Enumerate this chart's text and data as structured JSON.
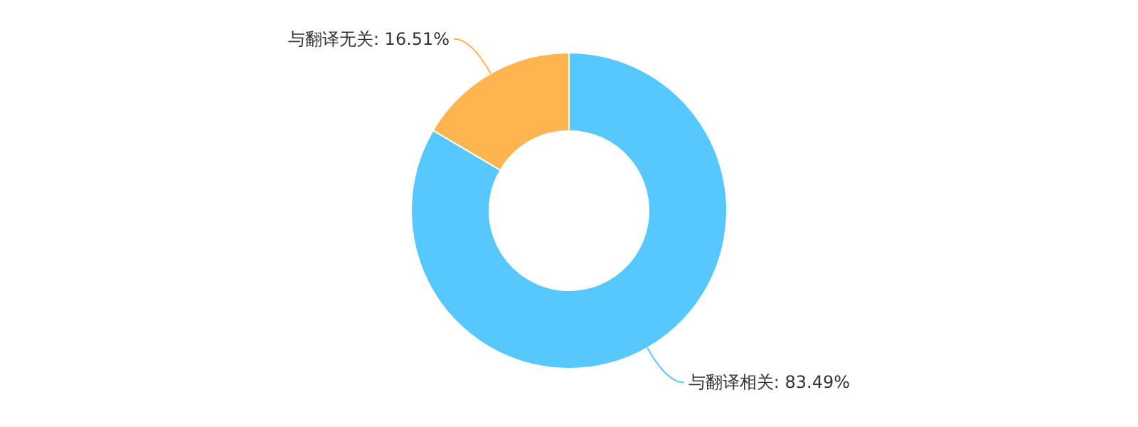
{
  "chart_data": {
    "type": "donut",
    "categories": [
      "与翻译相关",
      "与翻译无关"
    ],
    "values": [
      83.49,
      16.51
    ],
    "colors": [
      "#56c8fe",
      "#ffb54f"
    ],
    "value_labels": [
      ": 83.49%",
      ": 16.51%"
    ]
  }
}
